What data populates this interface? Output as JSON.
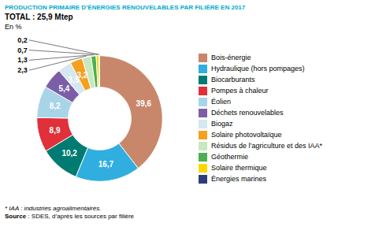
{
  "chart_data": {
    "type": "pie",
    "title": "PRODUCTION PRIMAIRE D’ÉNERGIES RENOUVELABLES PAR FILIÈRE EN 2017",
    "subtitle": "TOTAL : 25,9 Mtep",
    "annotations": [
      "En %"
    ],
    "categories": [
      "Bois-énergie",
      "Hydraulique (hors pompages)",
      "Biocarburants",
      "Pompes à chaleur",
      "Éolien",
      "Déchets renouvelables",
      "Biogaz",
      "Solaire photovoltaïque",
      "Résidus de l’agriculture et des IAA*",
      "Géothermie",
      "Solaire thermique",
      "Énergies marines"
    ],
    "values": [
      39.6,
      16.7,
      10.2,
      8.9,
      8.2,
      5.4,
      3.5,
      3.2,
      2.3,
      1.3,
      0.7,
      0.2
    ],
    "value_labels": [
      "39,6",
      "16,7",
      "10,2",
      "8,9",
      "8,2",
      "5,4",
      "3,5",
      "3,2",
      "2,3",
      "1,3",
      "0,7",
      "0,2"
    ],
    "colors": [
      "#C8876B",
      "#30AEDF",
      "#007B71",
      "#E0303A",
      "#A8D4E8",
      "#7B5EA7",
      "#D4E8F0",
      "#F5A020",
      "#C8E8C0",
      "#4CAF50",
      "#FFD700",
      "#2C3E7A"
    ],
    "data_labels": true,
    "legend": "right",
    "footnotes": [
      "* IAA : industries agroalimentaires.",
      "Source : SDES, d’après les sources par filière"
    ]
  }
}
